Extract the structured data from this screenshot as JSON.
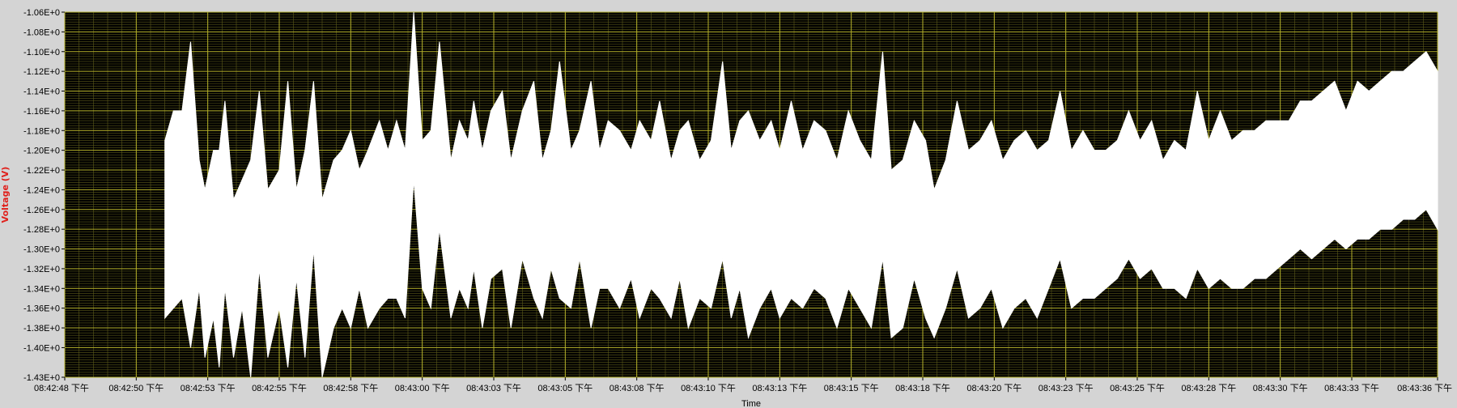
{
  "chart_data": {
    "type": "area",
    "title": "",
    "xlabel": "Time",
    "ylabel": "Voltage (V)",
    "ylim": [
      -1.43,
      -1.06
    ],
    "xlim_seconds": [
      0,
      48
    ],
    "grid": true,
    "legend": "none",
    "colors": {
      "background": "#000000",
      "panel": "#d4d4d4",
      "grid_major": "#b5b12a",
      "grid_minor": "#5c5a1a",
      "signal": "#ffffff",
      "ylabel": "#e0201b"
    },
    "y_ticks": [
      -1.06,
      -1.08,
      -1.1,
      -1.12,
      -1.14,
      -1.16,
      -1.18,
      -1.2,
      -1.22,
      -1.24,
      -1.26,
      -1.28,
      -1.3,
      -1.32,
      -1.34,
      -1.36,
      -1.38,
      -1.4,
      -1.43
    ],
    "y_tick_labels": [
      "-1.06E+0",
      "-1.08E+0",
      "-1.10E+0",
      "-1.12E+0",
      "-1.14E+0",
      "-1.16E+0",
      "-1.18E+0",
      "-1.20E+0",
      "-1.22E+0",
      "-1.24E+0",
      "-1.26E+0",
      "-1.28E+0",
      "-1.30E+0",
      "-1.32E+0",
      "-1.34E+0",
      "-1.36E+0",
      "-1.38E+0",
      "-1.40E+0",
      "-1.43E+0"
    ],
    "x_ticks": [
      0,
      2.5,
      5,
      7.5,
      10,
      12.5,
      15,
      17.5,
      20,
      22.5,
      25,
      27.5,
      30,
      32.5,
      35,
      37.5,
      40,
      42.5,
      45,
      48
    ],
    "x_tick_labels": [
      "08:42:48 下午",
      "08:42:50 下午",
      "08:42:53 下午",
      "08:42:55 下午",
      "08:42:58 下午",
      "08:43:00 下午",
      "08:43:03 下午",
      "08:43:05 下午",
      "08:43:08 下午",
      "08:43:10 下午",
      "08:43:13 下午",
      "08:43:15 下午",
      "08:43:18 下午",
      "08:43:20 下午",
      "08:43:23 下午",
      "08:43:25 下午",
      "08:43:28 下午",
      "08:43:30 下午",
      "08:43:33 下午",
      "08:43:36 下午"
    ],
    "series": [
      {
        "x": [
          3.5,
          3.8,
          4.1,
          4.4,
          4.7,
          4.9,
          5.2,
          5.4,
          5.6,
          5.9,
          6.2,
          6.5,
          6.8,
          7.1,
          7.5,
          7.8,
          8.1,
          8.4,
          8.7,
          9.0,
          9.4,
          9.7,
          10.0,
          10.3,
          10.6,
          11.0,
          11.3,
          11.6,
          11.9,
          12.2,
          12.5,
          12.8,
          13.1,
          13.5,
          13.8,
          14.1,
          14.3,
          14.6,
          14.9,
          15.3,
          15.6,
          16.0,
          16.4,
          16.7,
          17.0,
          17.3,
          17.7,
          18.0,
          18.4,
          18.7,
          19.0,
          19.4,
          19.8,
          20.1,
          20.5,
          20.8,
          21.2,
          21.5,
          21.8,
          22.2,
          22.6,
          23.0,
          23.3,
          23.6,
          23.9,
          24.3,
          24.7,
          25.0,
          25.4,
          25.8,
          26.2,
          26.6,
          27.0,
          27.4,
          27.8,
          28.2,
          28.6,
          28.9,
          29.3,
          29.7,
          30.1,
          30.4,
          30.8,
          31.2,
          31.6,
          32.0,
          32.4,
          32.8,
          33.2,
          33.6,
          34.0,
          34.4,
          34.8,
          35.2,
          35.6,
          36.0,
          36.4,
          36.8,
          37.2,
          37.6,
          38.0,
          38.4,
          38.8,
          39.2,
          39.6,
          40.0,
          40.4,
          40.8,
          41.2,
          41.6,
          42.0,
          42.4,
          42.8,
          43.2,
          43.6,
          44.0,
          44.4,
          44.8,
          45.2,
          45.6,
          46.0,
          46.4,
          46.8,
          47.2,
          47.6,
          48.0
        ],
        "y_max": [
          -1.19,
          -1.16,
          -1.16,
          -1.09,
          -1.21,
          -1.24,
          -1.2,
          -1.2,
          -1.15,
          -1.25,
          -1.23,
          -1.21,
          -1.14,
          -1.24,
          -1.22,
          -1.13,
          -1.24,
          -1.2,
          -1.13,
          -1.25,
          -1.21,
          -1.2,
          -1.18,
          -1.22,
          -1.2,
          -1.17,
          -1.2,
          -1.17,
          -1.2,
          -1.06,
          -1.19,
          -1.18,
          -1.09,
          -1.21,
          -1.17,
          -1.19,
          -1.15,
          -1.2,
          -1.16,
          -1.14,
          -1.21,
          -1.16,
          -1.13,
          -1.21,
          -1.18,
          -1.11,
          -1.2,
          -1.18,
          -1.13,
          -1.2,
          -1.17,
          -1.18,
          -1.2,
          -1.17,
          -1.19,
          -1.15,
          -1.21,
          -1.18,
          -1.17,
          -1.21,
          -1.19,
          -1.11,
          -1.2,
          -1.17,
          -1.16,
          -1.19,
          -1.17,
          -1.2,
          -1.15,
          -1.2,
          -1.17,
          -1.18,
          -1.21,
          -1.16,
          -1.19,
          -1.21,
          -1.1,
          -1.22,
          -1.21,
          -1.17,
          -1.19,
          -1.24,
          -1.21,
          -1.15,
          -1.2,
          -1.19,
          -1.17,
          -1.21,
          -1.19,
          -1.18,
          -1.2,
          -1.19,
          -1.14,
          -1.2,
          -1.18,
          -1.2,
          -1.2,
          -1.19,
          -1.16,
          -1.19,
          -1.17,
          -1.21,
          -1.19,
          -1.2,
          -1.14,
          -1.19,
          -1.16,
          -1.19,
          -1.18,
          -1.18,
          -1.17,
          -1.17,
          -1.17,
          -1.15,
          -1.15,
          -1.14,
          -1.13,
          -1.16,
          -1.13,
          -1.14,
          -1.13,
          -1.12,
          -1.12,
          -1.11,
          -1.1,
          -1.12
        ],
        "y_min": [
          -1.37,
          -1.36,
          -1.35,
          -1.4,
          -1.34,
          -1.41,
          -1.37,
          -1.42,
          -1.34,
          -1.41,
          -1.36,
          -1.43,
          -1.32,
          -1.41,
          -1.36,
          -1.42,
          -1.33,
          -1.41,
          -1.3,
          -1.43,
          -1.38,
          -1.36,
          -1.38,
          -1.34,
          -1.38,
          -1.36,
          -1.35,
          -1.35,
          -1.37,
          -1.23,
          -1.34,
          -1.36,
          -1.28,
          -1.37,
          -1.34,
          -1.36,
          -1.32,
          -1.38,
          -1.33,
          -1.32,
          -1.38,
          -1.31,
          -1.35,
          -1.37,
          -1.32,
          -1.35,
          -1.36,
          -1.31,
          -1.38,
          -1.34,
          -1.34,
          -1.36,
          -1.33,
          -1.37,
          -1.34,
          -1.35,
          -1.37,
          -1.33,
          -1.38,
          -1.35,
          -1.36,
          -1.31,
          -1.37,
          -1.34,
          -1.39,
          -1.36,
          -1.34,
          -1.37,
          -1.35,
          -1.36,
          -1.34,
          -1.35,
          -1.38,
          -1.34,
          -1.36,
          -1.38,
          -1.31,
          -1.39,
          -1.38,
          -1.33,
          -1.37,
          -1.39,
          -1.36,
          -1.32,
          -1.37,
          -1.36,
          -1.34,
          -1.38,
          -1.36,
          -1.35,
          -1.37,
          -1.34,
          -1.31,
          -1.36,
          -1.35,
          -1.35,
          -1.34,
          -1.33,
          -1.31,
          -1.33,
          -1.32,
          -1.34,
          -1.34,
          -1.35,
          -1.32,
          -1.34,
          -1.33,
          -1.34,
          -1.34,
          -1.33,
          -1.33,
          -1.32,
          -1.31,
          -1.3,
          -1.31,
          -1.3,
          -1.29,
          -1.3,
          -1.29,
          -1.29,
          -1.28,
          -1.28,
          -1.27,
          -1.27,
          -1.26,
          -1.28
        ]
      }
    ]
  }
}
